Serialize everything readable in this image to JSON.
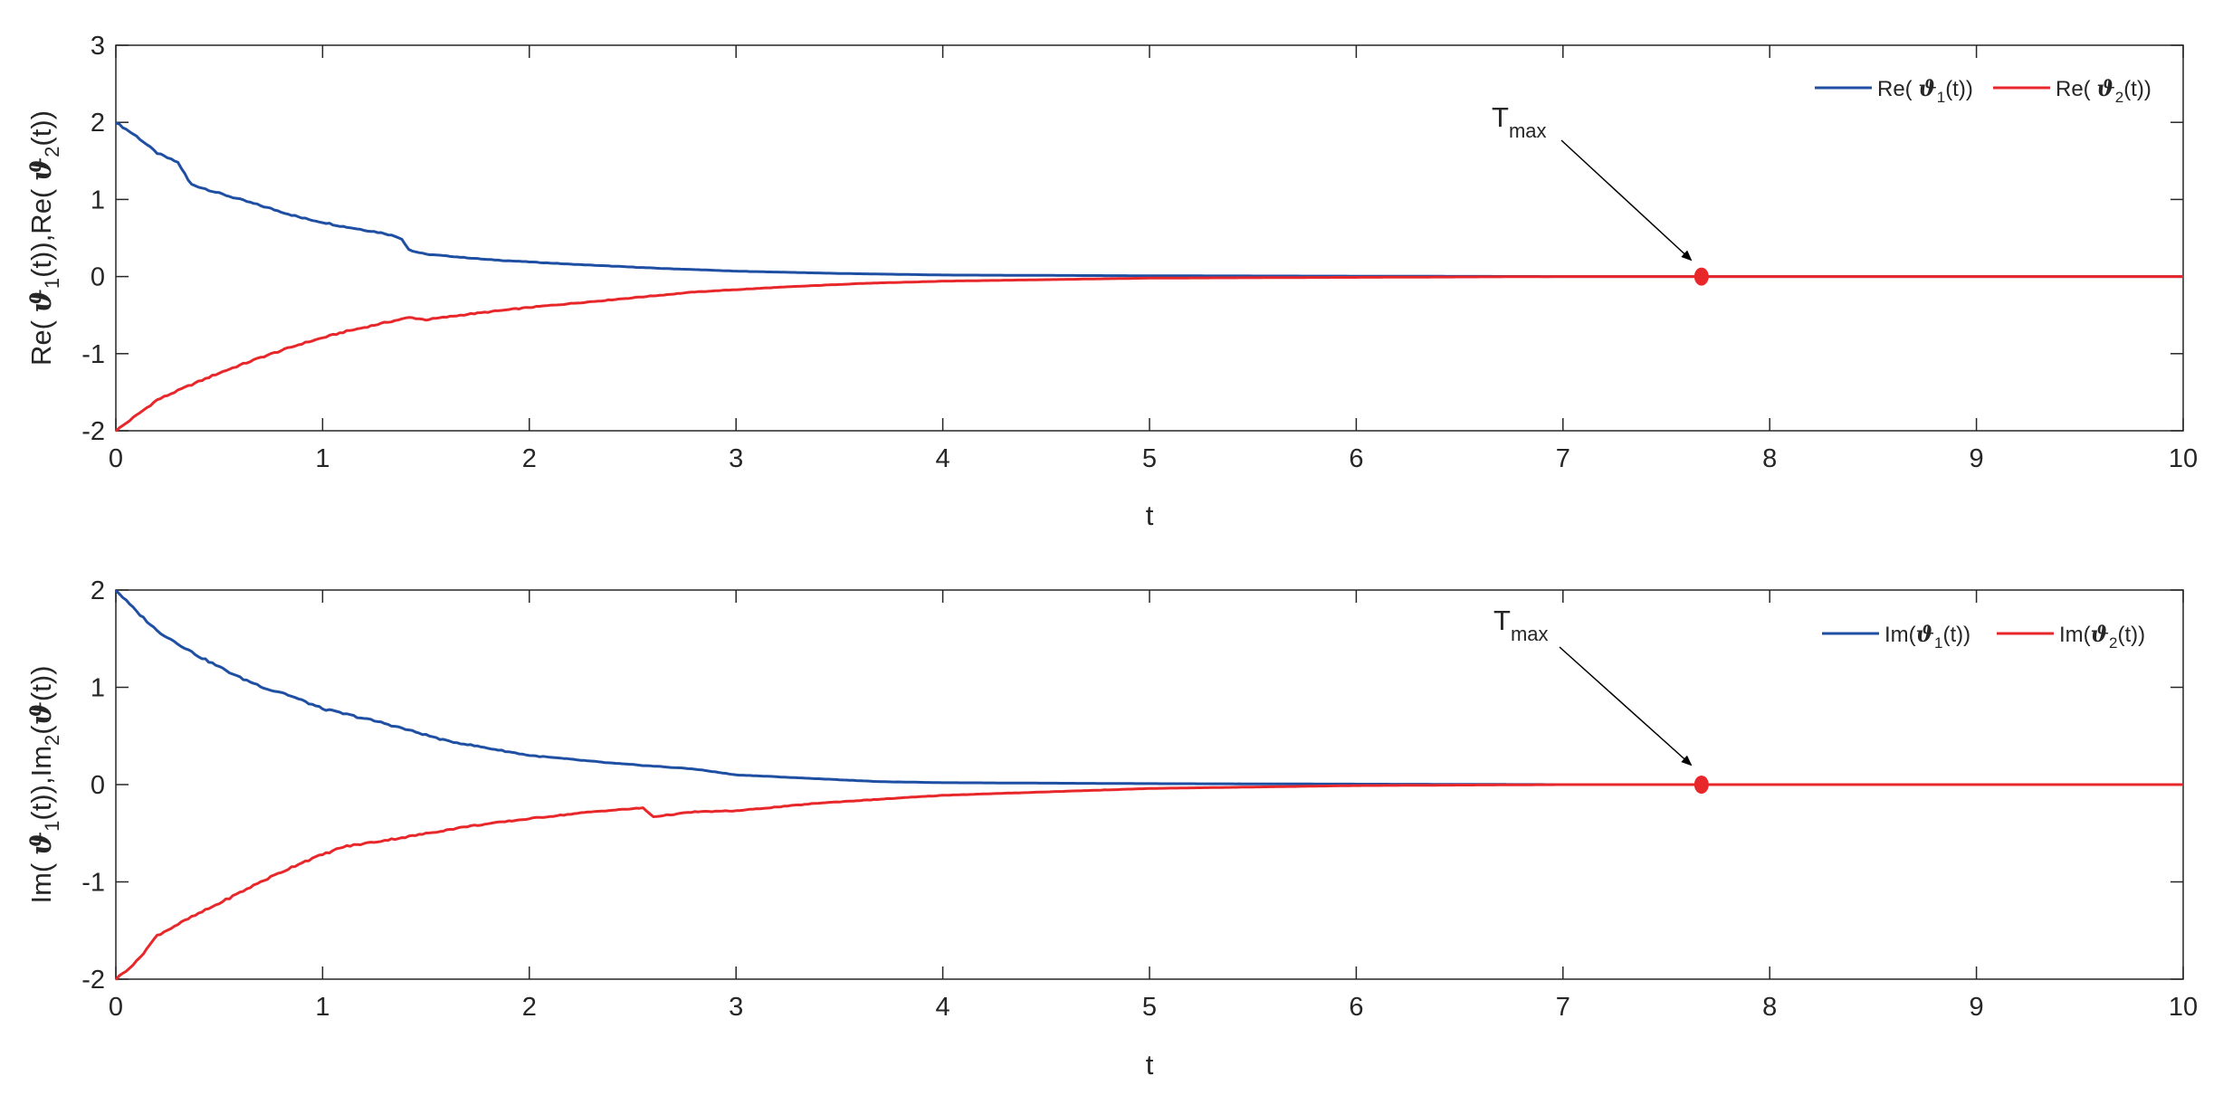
{
  "colors": {
    "series1": "#1f4fa3",
    "series2": "#e8272b",
    "axis": "#262626",
    "marker": "#e8272b"
  },
  "chart_data": [
    {
      "type": "line",
      "xlabel": "t",
      "ylabel": "Re( ϑ₁(t)),Re( ϑ₂(t))",
      "xlim": [
        0,
        10
      ],
      "ylim": [
        -2,
        3
      ],
      "xticks": [
        "0",
        "1",
        "2",
        "3",
        "4",
        "5",
        "6",
        "7",
        "8",
        "9",
        "10"
      ],
      "yticks": [
        "-2",
        "-1",
        "0",
        "1",
        "2",
        "3"
      ],
      "legend_position": "top-right",
      "grid": false,
      "series": [
        {
          "name": "Re( ϑ₁(t))",
          "x": [
            0,
            0.1,
            0.2,
            0.3,
            0.33,
            0.36,
            0.5,
            0.7,
            0.9,
            1.1,
            1.3,
            1.38,
            1.42,
            1.5,
            1.8,
            2.2,
            2.6,
            3.0,
            3.5,
            4.0,
            5.0,
            6.0,
            7.0,
            8.0,
            9.0,
            10.0
          ],
          "y": [
            2.0,
            1.82,
            1.6,
            1.48,
            1.35,
            1.2,
            1.08,
            0.92,
            0.76,
            0.65,
            0.56,
            0.5,
            0.34,
            0.29,
            0.22,
            0.16,
            0.11,
            0.07,
            0.04,
            0.02,
            0.01,
            0.005,
            0.0,
            0.0,
            0.0,
            0.0
          ]
        },
        {
          "name": "Re( ϑ₂(t))",
          "x": [
            0,
            0.1,
            0.2,
            0.35,
            0.5,
            0.7,
            0.9,
            1.1,
            1.3,
            1.42,
            1.5,
            1.7,
            2.0,
            2.4,
            2.8,
            3.2,
            3.6,
            4.0,
            4.5,
            5.0,
            6.0,
            7.0,
            8.0,
            9.0,
            10.0
          ],
          "y": [
            -2.0,
            -1.8,
            -1.6,
            -1.42,
            -1.25,
            -1.05,
            -0.87,
            -0.72,
            -0.6,
            -0.53,
            -0.56,
            -0.49,
            -0.4,
            -0.3,
            -0.2,
            -0.14,
            -0.09,
            -0.06,
            -0.04,
            -0.02,
            -0.01,
            0.0,
            0.0,
            0.0,
            0.0
          ]
        }
      ],
      "annotation": {
        "text": "T",
        "subscript": "max",
        "x": 7.67,
        "y": 0
      }
    },
    {
      "type": "line",
      "xlabel": "t",
      "ylabel": "Im( ϑ₁(t)),Im₂(ϑ(t))",
      "xlim": [
        0,
        10
      ],
      "ylim": [
        -2,
        2
      ],
      "xticks": [
        "0",
        "1",
        "2",
        "3",
        "4",
        "5",
        "6",
        "7",
        "8",
        "9",
        "10"
      ],
      "yticks": [
        "-2",
        "-1",
        "0",
        "1",
        "2"
      ],
      "legend_position": "top-right",
      "grid": false,
      "series": [
        {
          "name": "Im(ϑ₁(t))",
          "x": [
            0,
            0.1,
            0.2,
            0.4,
            0.6,
            0.75,
            0.8,
            1.0,
            1.3,
            1.6,
            2.0,
            2.4,
            2.8,
            3.0,
            3.4,
            3.7,
            4.0,
            5.0,
            6.0,
            7.0,
            8.0,
            9.0,
            10.0
          ],
          "y": [
            2.0,
            1.78,
            1.58,
            1.32,
            1.1,
            0.97,
            0.95,
            0.78,
            0.63,
            0.45,
            0.3,
            0.22,
            0.16,
            0.1,
            0.06,
            0.03,
            0.02,
            0.01,
            0.005,
            0.0,
            0.0,
            0.0,
            0.0
          ]
        },
        {
          "name": "Im(ϑ₂(t))",
          "x": [
            0,
            0.1,
            0.2,
            0.35,
            0.5,
            0.7,
            0.9,
            1.1,
            1.4,
            1.7,
            2.0,
            2.3,
            2.55,
            2.6,
            2.8,
            3.0,
            3.4,
            4.0,
            5.0,
            6.0,
            7.0,
            8.0,
            9.0,
            10.0
          ],
          "y": [
            -2.0,
            -1.82,
            -1.55,
            -1.38,
            -1.22,
            -1.0,
            -0.8,
            -0.64,
            -0.54,
            -0.43,
            -0.35,
            -0.28,
            -0.24,
            -0.33,
            -0.28,
            -0.27,
            -0.19,
            -0.11,
            -0.04,
            -0.01,
            0.0,
            0.0,
            0.0,
            0.0
          ]
        }
      ],
      "annotation": {
        "text": "T",
        "subscript": "max",
        "x": 7.67,
        "y": 0
      }
    }
  ]
}
